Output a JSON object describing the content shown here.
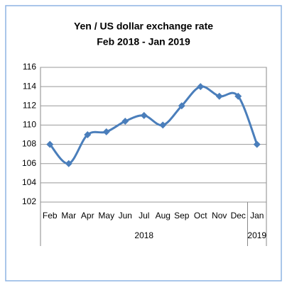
{
  "chart_data": {
    "type": "line",
    "title": "Yen / US dollar exchange rate",
    "subtitle": "Feb 2018 - Jan 2019",
    "categories": [
      "Feb",
      "Mar",
      "Apr",
      "May",
      "Jun",
      "Jul",
      "Aug",
      "Sep",
      "Oct",
      "Nov",
      "Dec",
      "Jan"
    ],
    "category_groups": [
      {
        "label": "2018",
        "count": 11
      },
      {
        "label": "2019",
        "count": 1
      }
    ],
    "series": [
      {
        "color": "#4a7ebb",
        "values": [
          108,
          106,
          109,
          109.3,
          110.4,
          111,
          110,
          112,
          114,
          113,
          113,
          108
        ]
      }
    ],
    "ylim": [
      102,
      116
    ],
    "yticks": [
      102,
      104,
      106,
      108,
      110,
      112,
      114,
      116
    ],
    "grid": true
  }
}
